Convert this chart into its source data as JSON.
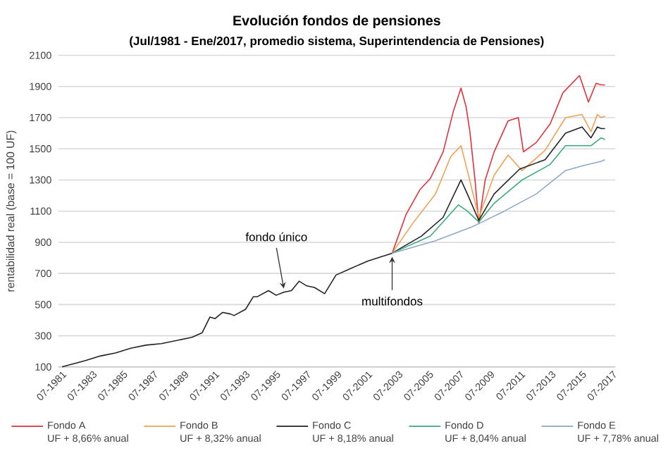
{
  "chart_data": {
    "type": "line",
    "title": "Evolución fondos de pensiones",
    "subtitle": "(Jul/1981 - Ene/2017, promedio sistema, Superintendencia de Pensiones)",
    "ylabel": "rentabilidad real  (base = 100 UF)",
    "xlim": [
      "1981-04",
      "2017-09"
    ],
    "ylim": [
      100,
      2100
    ],
    "xticks": [
      {
        "value": "1981-07",
        "label": "07-1981"
      },
      {
        "value": "1983-07",
        "label": "07-1983"
      },
      {
        "value": "1985-07",
        "label": "07-1985"
      },
      {
        "value": "1987-07",
        "label": "07-1987"
      },
      {
        "value": "1989-07",
        "label": "07-1989"
      },
      {
        "value": "1991-07",
        "label": "07-1991"
      },
      {
        "value": "1993-07",
        "label": "07-1993"
      },
      {
        "value": "1995-07",
        "label": "07-1995"
      },
      {
        "value": "1997-07",
        "label": "07-1997"
      },
      {
        "value": "1999-07",
        "label": "07-1999"
      },
      {
        "value": "2001-07",
        "label": "07-2001"
      },
      {
        "value": "2003-07",
        "label": "07-2003"
      },
      {
        "value": "2005-07",
        "label": "07-2005"
      },
      {
        "value": "2007-07",
        "label": "07-2007"
      },
      {
        "value": "2009-07",
        "label": "07-2009"
      },
      {
        "value": "2011-07",
        "label": "07-2011"
      },
      {
        "value": "2013-07",
        "label": "07-2013"
      },
      {
        "value": "2015-07",
        "label": "07-2015"
      },
      {
        "value": "2017-07",
        "label": "07-2017"
      }
    ],
    "yticks": [
      100,
      300,
      500,
      700,
      900,
      1100,
      1300,
      1500,
      1700,
      1900,
      2100
    ],
    "grid": "y",
    "legend": "bottom",
    "marker": "none",
    "line_style": "solid",
    "series": [
      {
        "name": "Fondo A",
        "color": "#e0303a",
        "x": [
          "2003-02",
          "2004-01",
          "2004-12",
          "2005-08",
          "2006-06",
          "2007-02",
          "2007-08",
          "2007-12",
          "2008-03",
          "2008-07",
          "2008-10",
          "2009-03",
          "2009-10",
          "2010-09",
          "2011-05",
          "2011-09",
          "2012-07",
          "2013-06",
          "2014-04",
          "2015-05",
          "2015-12",
          "2016-06",
          "2016-10",
          "2017-01"
        ],
        "values": [
          830,
          1080,
          1240,
          1310,
          1480,
          1740,
          1890,
          1770,
          1610,
          1300,
          1020,
          1300,
          1480,
          1680,
          1700,
          1480,
          1540,
          1660,
          1860,
          1970,
          1800,
          1920,
          1910,
          1910
        ]
      },
      {
        "name": "Fondo B",
        "color": "#f0a050",
        "x": [
          "2003-02",
          "2004-06",
          "2005-12",
          "2006-12",
          "2007-08",
          "2008-01",
          "2008-10",
          "2009-10",
          "2010-09",
          "2011-08",
          "2013-02",
          "2014-06",
          "2015-07",
          "2016-02",
          "2016-07",
          "2016-10",
          "2017-01"
        ],
        "values": [
          830,
          1020,
          1210,
          1450,
          1520,
          1360,
          1060,
          1330,
          1460,
          1360,
          1490,
          1700,
          1720,
          1610,
          1720,
          1700,
          1710
        ]
      },
      {
        "name": "Fondo C",
        "color": "#222222",
        "x": [
          "1981-07",
          "1983-01",
          "1984-01",
          "1985-01",
          "1986-01",
          "1987-01",
          "1988-01",
          "1989-01",
          "1990-01",
          "1990-09",
          "1991-03",
          "1991-07",
          "1992-01",
          "1992-07",
          "1992-10",
          "1993-07",
          "1994-01",
          "1994-04",
          "1995-01",
          "1995-07",
          "1996-01",
          "1996-07",
          "1997-01",
          "1997-07",
          "1998-01",
          "1998-09",
          "1999-06",
          "2000-05",
          "2001-07",
          "2003-02",
          "2005-01",
          "2006-06",
          "2007-08",
          "2008-01",
          "2008-10",
          "2009-10",
          "2011-06",
          "2013-02",
          "2014-06",
          "2015-07",
          "2016-02",
          "2016-07",
          "2016-10",
          "2017-01"
        ],
        "values": [
          100,
          140,
          170,
          190,
          220,
          240,
          250,
          270,
          290,
          320,
          420,
          410,
          450,
          440,
          430,
          470,
          550,
          550,
          590,
          560,
          580,
          590,
          650,
          620,
          610,
          570,
          690,
          730,
          780,
          830,
          940,
          1060,
          1300,
          1210,
          1040,
          1210,
          1370,
          1430,
          1600,
          1640,
          1570,
          1640,
          1630,
          1630
        ]
      },
      {
        "name": "Fondo D",
        "color": "#3aaa7a",
        "x": [
          "2003-02",
          "2005-08",
          "2007-06",
          "2008-01",
          "2008-10",
          "2009-10",
          "2011-08",
          "2013-06",
          "2014-06",
          "2015-07",
          "2016-02",
          "2016-10",
          "2017-01"
        ],
        "values": [
          830,
          940,
          1140,
          1100,
          1030,
          1150,
          1300,
          1400,
          1520,
          1520,
          1520,
          1570,
          1560
        ]
      },
      {
        "name": "Fondo E",
        "color": "#8fa8c8",
        "x": [
          "2003-02",
          "2005-12",
          "2008-05",
          "2008-10",
          "2010-06",
          "2012-07",
          "2014-06",
          "2015-07",
          "2016-10",
          "2017-01"
        ],
        "values": [
          830,
          910,
          1000,
          1020,
          1100,
          1210,
          1360,
          1390,
          1420,
          1430
        ]
      }
    ],
    "annotations": [
      {
        "text": "fondo único",
        "x": "1996-01",
        "y": 580
      },
      {
        "text": "multifondos",
        "x": "2003-02",
        "y": 830
      },
      "UF + 8,66% anual",
      "UF + 8,32% anual",
      "UF + 8,18% anual",
      "UF + 8,04% anual",
      "UF + 7,78% anual"
    ]
  }
}
